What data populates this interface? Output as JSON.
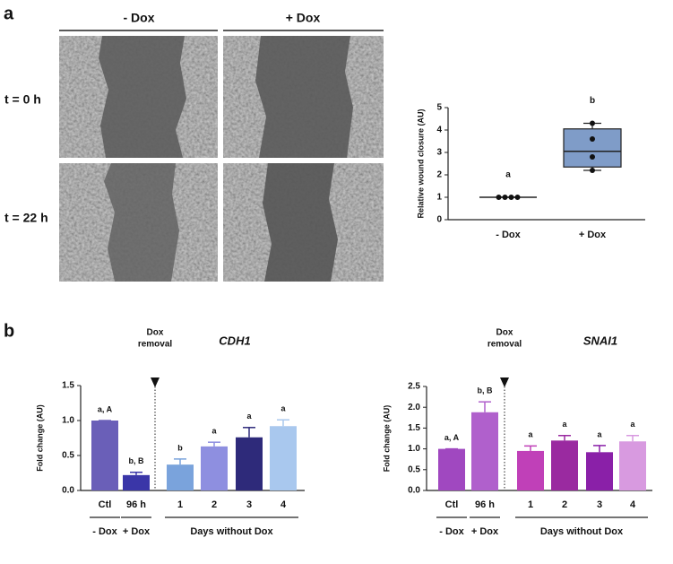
{
  "panel_a": {
    "label": "a",
    "columns": [
      "- Dox",
      "+ Dox"
    ],
    "rows": [
      "t = 0 h",
      "t = 22 h"
    ]
  },
  "panel_b": {
    "label": "b"
  },
  "chart_data": [
    {
      "type": "box",
      "ylabel": "Relative wound closure (AU)",
      "categories": [
        "- Dox",
        "+ Dox"
      ],
      "boxes": [
        {
          "min": 1,
          "q1": 1,
          "median": 1,
          "q3": 1,
          "max": 1,
          "points": [
            1,
            1,
            1,
            1
          ]
        },
        {
          "min": 2.2,
          "q1": 2.35,
          "median": 3.05,
          "q3": 4.05,
          "max": 4.3,
          "points": [
            4.3,
            3.6,
            2.8,
            2.2
          ]
        }
      ],
      "letters": [
        "a",
        "b"
      ],
      "color": "#7f9cc8",
      "ylim": [
        0,
        5
      ],
      "yticks": [
        0,
        1,
        2,
        3,
        4,
        5
      ]
    },
    {
      "type": "bar",
      "title": "CDH1",
      "ylabel": "Fold change (AU)",
      "categories": [
        "Ctl",
        "96 h",
        "1",
        "2",
        "3",
        "4"
      ],
      "values": [
        1.0,
        0.22,
        0.37,
        0.63,
        0.76,
        0.92
      ],
      "errors": [
        0,
        0.04,
        0.08,
        0.06,
        0.14,
        0.09
      ],
      "letters": [
        "a, A",
        "b, B",
        "b",
        "a",
        "a",
        "a"
      ],
      "colors": [
        "#6a5fb8",
        "#3a36a8",
        "#7aa3dc",
        "#8e8fe0",
        "#2e2a7a",
        "#a9c8ee"
      ],
      "groups": [
        "- Dox",
        "+ Dox",
        "Days without Dox"
      ],
      "annotation_lines": [
        "Dox",
        "removal"
      ],
      "ylim": [
        0,
        1.5
      ],
      "yticks": [
        {
          "value": 0,
          "label": "0.0"
        },
        0.5,
        {
          "value": 1,
          "label": "1.0"
        },
        1.5
      ]
    },
    {
      "type": "bar",
      "title": "SNAI1",
      "ylabel": "Fold change (AU)",
      "categories": [
        "Ctl",
        "96 h",
        "1",
        "2",
        "3",
        "4"
      ],
      "values": [
        1.0,
        1.88,
        0.95,
        1.2,
        0.92,
        1.18
      ],
      "errors": [
        0,
        0.25,
        0.12,
        0.12,
        0.16,
        0.14
      ],
      "letters": [
        "a, A",
        "b, B",
        "a",
        "a",
        "a",
        "a"
      ],
      "colors": [
        "#a048c0",
        "#b060cc",
        "#c040b8",
        "#9a2aa0",
        "#8a20a8",
        "#d89ae0"
      ],
      "groups": [
        "- Dox",
        "+ Dox",
        "Days without Dox"
      ],
      "annotation_lines": [
        "Dox",
        "removal"
      ],
      "ylim": [
        0,
        2.5
      ],
      "yticks": [
        {
          "value": 0,
          "label": "0.0"
        },
        0.5,
        {
          "value": 1,
          "label": "1.0"
        },
        1.5,
        {
          "value": 2,
          "label": "2.0"
        },
        2.5
      ]
    }
  ]
}
